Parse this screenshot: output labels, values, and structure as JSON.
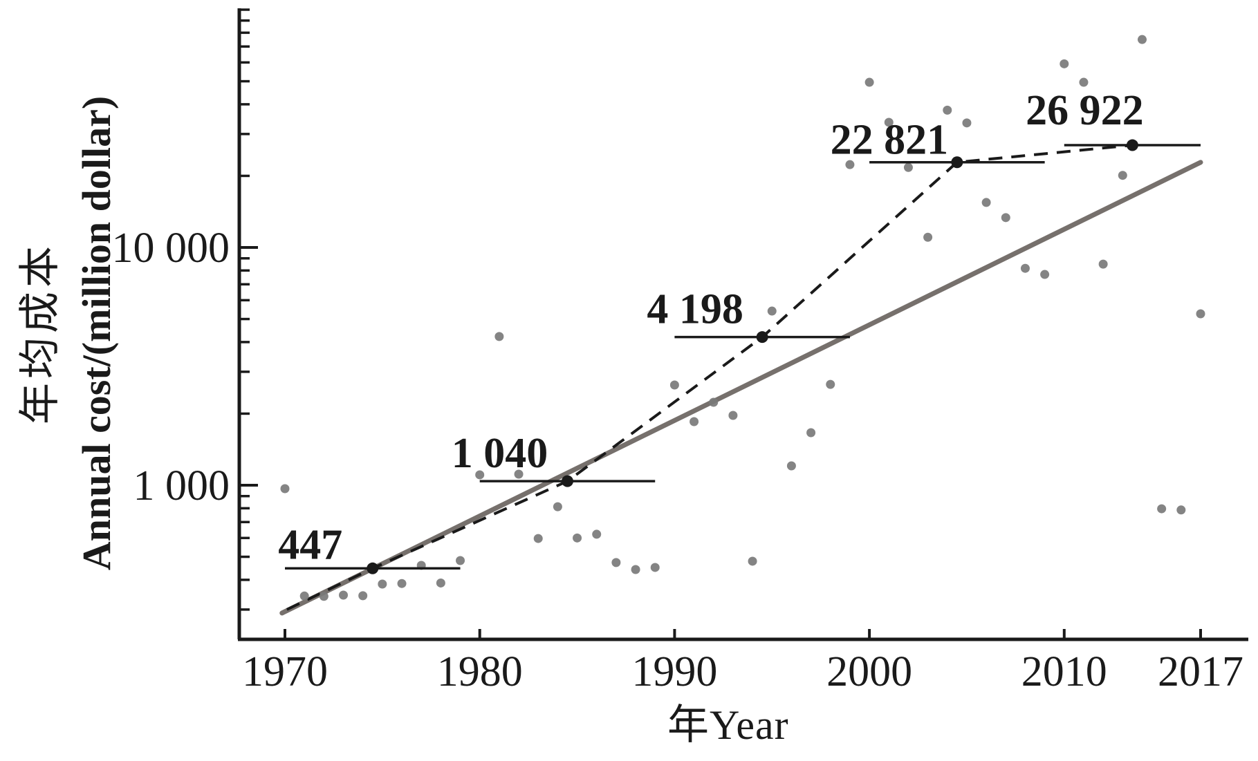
{
  "chart_data": {
    "type": "scatter",
    "title": "",
    "xlabel": "年Year",
    "ylabel_lines": [
      "年均成本",
      "Annual cost/(million dollar)"
    ],
    "y_scale": "log10",
    "grid": false,
    "legend": "none",
    "x_ticks": [
      1970,
      1980,
      1990,
      2000,
      2010,
      2017
    ],
    "y_major_ticks": [
      {
        "value": 1000,
        "label": "1 000"
      },
      {
        "value": 10000,
        "label": "10 000"
      }
    ],
    "ylim": [
      250,
      100000
    ],
    "xlim": [
      1967.6,
      2019.4
    ],
    "points": [
      {
        "year": 1970,
        "value": 967
      },
      {
        "year": 1971,
        "value": 342
      },
      {
        "year": 1972,
        "value": 341
      },
      {
        "year": 1973,
        "value": 345
      },
      {
        "year": 1974,
        "value": 343
      },
      {
        "year": 1975,
        "value": 384
      },
      {
        "year": 1976,
        "value": 386
      },
      {
        "year": 1977,
        "value": 460
      },
      {
        "year": 1978,
        "value": 388
      },
      {
        "year": 1979,
        "value": 482
      },
      {
        "year": 1980,
        "value": 1106
      },
      {
        "year": 1981,
        "value": 4220
      },
      {
        "year": 1982,
        "value": 1113
      },
      {
        "year": 1983,
        "value": 597
      },
      {
        "year": 1984,
        "value": 812
      },
      {
        "year": 1985,
        "value": 600
      },
      {
        "year": 1986,
        "value": 622
      },
      {
        "year": 1987,
        "value": 473
      },
      {
        "year": 1988,
        "value": 442
      },
      {
        "year": 1989,
        "value": 451
      },
      {
        "year": 1990,
        "value": 2640
      },
      {
        "year": 1991,
        "value": 1851
      },
      {
        "year": 1992,
        "value": 2233
      },
      {
        "year": 1993,
        "value": 1966
      },
      {
        "year": 1994,
        "value": 479
      },
      {
        "year": 1995,
        "value": 5400
      },
      {
        "year": 1996,
        "value": 1206
      },
      {
        "year": 1997,
        "value": 1663
      },
      {
        "year": 1998,
        "value": 2655
      },
      {
        "year": 1999,
        "value": 22300
      },
      {
        "year": 2000,
        "value": 49500
      },
      {
        "year": 2001,
        "value": 33600
      },
      {
        "year": 2002,
        "value": 21700
      },
      {
        "year": 2003,
        "value": 11040
      },
      {
        "year": 2004,
        "value": 37800
      },
      {
        "year": 2005,
        "value": 33400
      },
      {
        "year": 2006,
        "value": 15460
      },
      {
        "year": 2007,
        "value": 13350
      },
      {
        "year": 2008,
        "value": 8170
      },
      {
        "year": 2009,
        "value": 7700
      },
      {
        "year": 2010,
        "value": 59200
      },
      {
        "year": 2011,
        "value": 49500
      },
      {
        "year": 2012,
        "value": 8510
      },
      {
        "year": 2013,
        "value": 20100
      },
      {
        "year": 2014,
        "value": 74900
      },
      {
        "year": 2015,
        "value": 796
      },
      {
        "year": 2016,
        "value": 787
      },
      {
        "year": 2017,
        "value": 5260
      }
    ],
    "decade_means": [
      {
        "label": "447",
        "value": 447,
        "from_year": 1970,
        "to_year": 1979,
        "dot_year": 1974.5
      },
      {
        "label": "1 040",
        "value": 1040,
        "from_year": 1980,
        "to_year": 1989,
        "dot_year": 1984.5
      },
      {
        "label": "4 198",
        "value": 4198,
        "from_year": 1990,
        "to_year": 1999,
        "dot_year": 1994.5
      },
      {
        "label": "22 821",
        "value": 22821,
        "from_year": 2000,
        "to_year": 2009,
        "dot_year": 2004.5
      },
      {
        "label": "26 922",
        "value": 26922,
        "from_year": 2010,
        "to_year": 2017,
        "dot_year": 2013.5
      }
    ],
    "trend_line": {
      "from": {
        "year": 1969.85,
        "value": 290
      },
      "to": {
        "year": 2017.0,
        "value": 22800
      }
    },
    "dashed_line_start": {
      "year": 1970.1,
      "value": 300
    },
    "colors": {
      "ink": "#1a1a1a",
      "point": "#7a7a7a",
      "trend": "#76706c"
    }
  }
}
